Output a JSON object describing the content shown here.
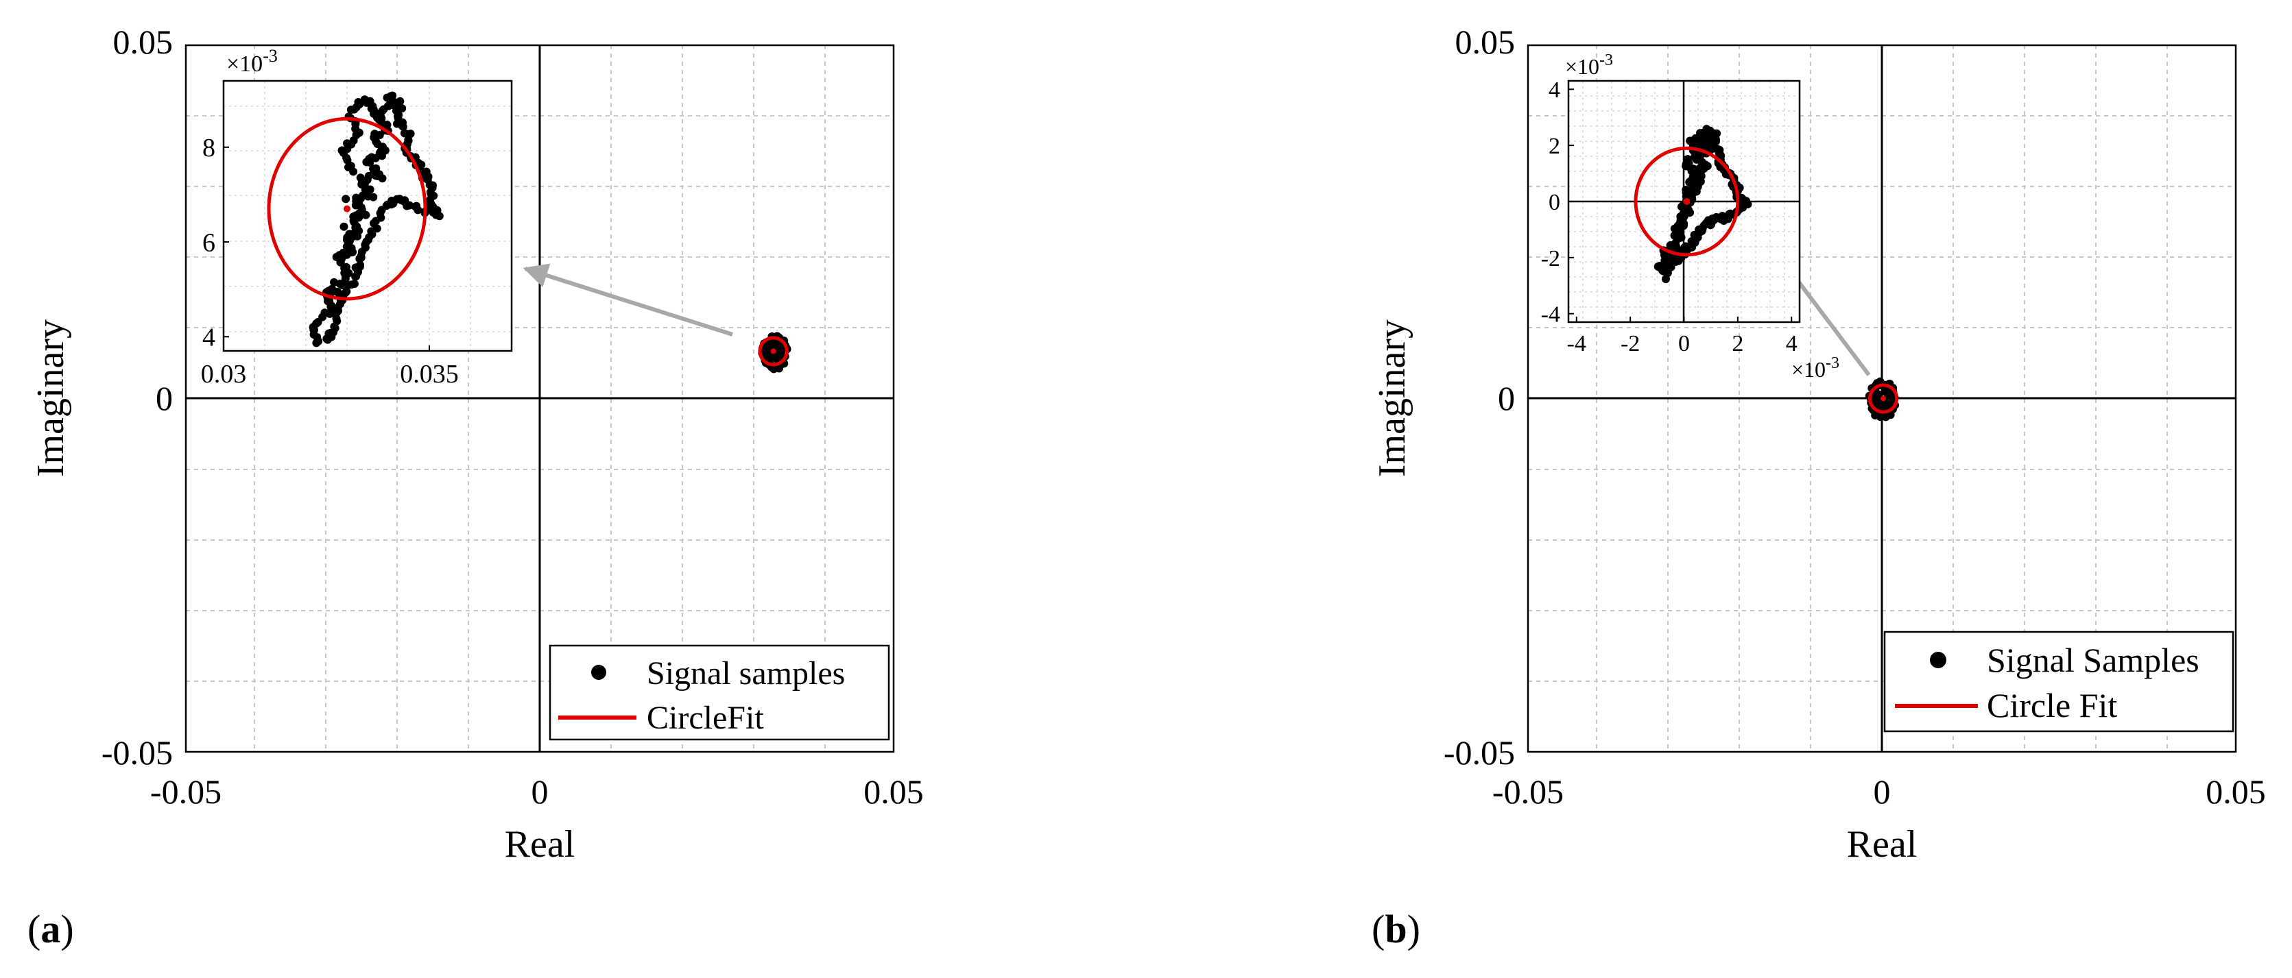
{
  "chart_data": [
    {
      "type": "scatter",
      "panel_label": "(a)",
      "xlabel": "Real",
      "ylabel": "Imaginary",
      "xlim": [
        -0.05,
        0.05
      ],
      "ylim": [
        -0.05,
        0.05
      ],
      "xticks": [
        "-0.05",
        "0",
        "0.05"
      ],
      "yticks": [
        "0.05",
        "0",
        "-0.05"
      ],
      "grid": true,
      "legend": {
        "position": "bottom-right",
        "entries": [
          {
            "label": "Signal samples",
            "style": "marker",
            "color": "#000000"
          },
          {
            "label": "CircleFit",
            "style": "line",
            "color": "#e00000"
          }
        ]
      },
      "main_cluster": {
        "center": [
          0.0332,
          0.0065
        ],
        "spread": [
          0.0018,
          0.0025
        ]
      },
      "circle_fit": {
        "center": [
          0.033,
          0.0067
        ],
        "radius": 0.0019
      },
      "inset": {
        "xlim": [
          0.03,
          0.037
        ],
        "ylim": [
          0.0037,
          0.0094
        ],
        "exponent_label": "×10",
        "exponent_power": "-3",
        "xticks": [
          {
            "value": 0.03,
            "label": "0.03"
          },
          {
            "value": 0.035,
            "label": "0.035"
          }
        ],
        "yticks": [
          {
            "value": 0.004,
            "label": "4"
          },
          {
            "value": 0.006,
            "label": "6"
          },
          {
            "value": 0.008,
            "label": "8"
          }
        ],
        "circle": {
          "center": [
            0.033,
            0.0067
          ],
          "radius": 0.0019
        },
        "trajectory": [
          [
            0.0323,
            0.0039
          ],
          [
            0.0322,
            0.0042
          ],
          [
            0.0326,
            0.0046
          ],
          [
            0.0325,
            0.0049
          ],
          [
            0.0328,
            0.005
          ],
          [
            0.033,
            0.0054
          ],
          [
            0.0328,
            0.0057
          ],
          [
            0.0331,
            0.0058
          ],
          [
            0.033,
            0.0061
          ],
          [
            0.0333,
            0.0062
          ],
          [
            0.0331,
            0.0065
          ],
          [
            0.0334,
            0.0066
          ],
          [
            0.0332,
            0.0069
          ],
          [
            0.0336,
            0.007
          ],
          [
            0.0333,
            0.0073
          ],
          [
            0.0338,
            0.0074
          ],
          [
            0.0335,
            0.0077
          ],
          [
            0.0339,
            0.0079
          ],
          [
            0.0336,
            0.0082
          ],
          [
            0.034,
            0.0084
          ],
          [
            0.0337,
            0.0087
          ],
          [
            0.0341,
            0.0089
          ],
          [
            0.034,
            0.0091
          ],
          [
            0.0343,
            0.0089
          ],
          [
            0.0342,
            0.0086
          ],
          [
            0.0345,
            0.0083
          ],
          [
            0.0344,
            0.008
          ],
          [
            0.0347,
            0.0077
          ],
          [
            0.0349,
            0.0074
          ],
          [
            0.0351,
            0.0071
          ],
          [
            0.035,
            0.0068
          ],
          [
            0.0352,
            0.0066
          ],
          [
            0.0347,
            0.0067
          ],
          [
            0.0343,
            0.0069
          ],
          [
            0.034,
            0.0068
          ],
          [
            0.0337,
            0.0064
          ],
          [
            0.0335,
            0.006
          ],
          [
            0.0333,
            0.0057
          ],
          [
            0.0332,
            0.0053
          ],
          [
            0.033,
            0.0049
          ],
          [
            0.0328,
            0.0046
          ],
          [
            0.0327,
            0.0042
          ],
          [
            0.0325,
            0.0039
          ],
          [
            0.0331,
            0.0075
          ],
          [
            0.0329,
            0.0079
          ],
          [
            0.0333,
            0.0083
          ],
          [
            0.0331,
            0.0087
          ],
          [
            0.0334,
            0.009
          ],
          [
            0.0337,
            0.0088
          ],
          [
            0.0339,
            0.0084
          ]
        ]
      }
    },
    {
      "type": "scatter",
      "panel_label": "(b)",
      "xlabel": "Real",
      "ylabel": "Imaginary",
      "xlim": [
        -0.05,
        0.05
      ],
      "ylim": [
        -0.05,
        0.05
      ],
      "xticks": [
        "-0.05",
        "0",
        "0.05"
      ],
      "yticks": [
        "0.05",
        "0",
        "-0.05"
      ],
      "grid": true,
      "legend": {
        "position": "bottom-right",
        "entries": [
          {
            "label": "Signal Samples",
            "style": "marker",
            "color": "#000000"
          },
          {
            "label": "Circle Fit",
            "style": "line",
            "color": "#e00000"
          }
        ]
      },
      "main_cluster": {
        "center": [
          0.0001,
          -0.0001
        ],
        "spread": [
          0.002,
          0.0027
        ]
      },
      "circle_fit": {
        "center": [
          0.0002,
          0.0
        ],
        "radius": 0.0019
      },
      "inset": {
        "xlim": [
          -0.0043,
          0.0043
        ],
        "ylim": [
          -0.0043,
          0.0043
        ],
        "exponent_label": "×10",
        "exponent_power": "-3",
        "x_exponent_label": "×10",
        "x_exponent_power": "-3",
        "xticks": [
          {
            "value": -0.004,
            "label": "-4"
          },
          {
            "value": -0.002,
            "label": "-2"
          },
          {
            "value": 0.0,
            "label": "0"
          },
          {
            "value": 0.002,
            "label": "2"
          },
          {
            "value": 0.004,
            "label": "4"
          }
        ],
        "yticks": [
          {
            "value": -0.004,
            "label": "-4"
          },
          {
            "value": -0.002,
            "label": "-2"
          },
          {
            "value": 0.0,
            "label": "0"
          },
          {
            "value": 0.002,
            "label": "2"
          },
          {
            "value": 0.004,
            "label": "4"
          }
        ],
        "circle": {
          "center": [
            0.0001,
            0.0
          ],
          "radius": 0.0019
        },
        "trajectory": [
          [
            -0.0006,
            -0.0027
          ],
          [
            -0.0009,
            -0.0023
          ],
          [
            -0.0005,
            -0.002
          ],
          [
            -0.0007,
            -0.0017
          ],
          [
            -0.0003,
            -0.0016
          ],
          [
            -0.0001,
            -0.0012
          ],
          [
            -0.0003,
            -0.0009
          ],
          [
            0.0,
            -0.0008
          ],
          [
            -0.0001,
            -0.0005
          ],
          [
            0.0002,
            -0.0004
          ],
          [
            0.0,
            -0.0001
          ],
          [
            0.0003,
            0.0
          ],
          [
            0.0001,
            0.0003
          ],
          [
            0.0005,
            0.0004
          ],
          [
            0.0002,
            0.0007
          ],
          [
            0.0007,
            0.0008
          ],
          [
            0.0004,
            0.0011
          ],
          [
            0.0008,
            0.0013
          ],
          [
            0.0005,
            0.0016
          ],
          [
            0.0009,
            0.0018
          ],
          [
            0.0006,
            0.0021
          ],
          [
            0.001,
            0.0023
          ],
          [
            0.0009,
            0.0025
          ],
          [
            0.0012,
            0.0023
          ],
          [
            0.0011,
            0.002
          ],
          [
            0.0014,
            0.0017
          ],
          [
            0.0013,
            0.0014
          ],
          [
            0.0016,
            0.0011
          ],
          [
            0.0018,
            0.0008
          ],
          [
            0.002,
            0.0005
          ],
          [
            0.0019,
            0.0002
          ],
          [
            0.0024,
            0.0
          ],
          [
            0.0019,
            -0.0004
          ],
          [
            0.0015,
            -0.0006
          ],
          [
            0.0012,
            -0.0006
          ],
          [
            0.0009,
            -0.0008
          ],
          [
            0.0006,
            -0.001
          ],
          [
            0.0004,
            -0.0013
          ],
          [
            0.0002,
            -0.0016
          ],
          [
            -0.0001,
            -0.0019
          ],
          [
            -0.0004,
            -0.0021
          ],
          [
            -0.0006,
            -0.0024
          ],
          [
            0.0003,
            0.0009
          ],
          [
            0.0001,
            0.0013
          ],
          [
            0.0005,
            0.0017
          ],
          [
            0.0003,
            0.0021
          ],
          [
            0.0006,
            0.0024
          ],
          [
            0.0009,
            0.0022
          ],
          [
            0.0011,
            0.0018
          ],
          [
            -0.001,
            -0.0026
          ]
        ]
      }
    }
  ]
}
